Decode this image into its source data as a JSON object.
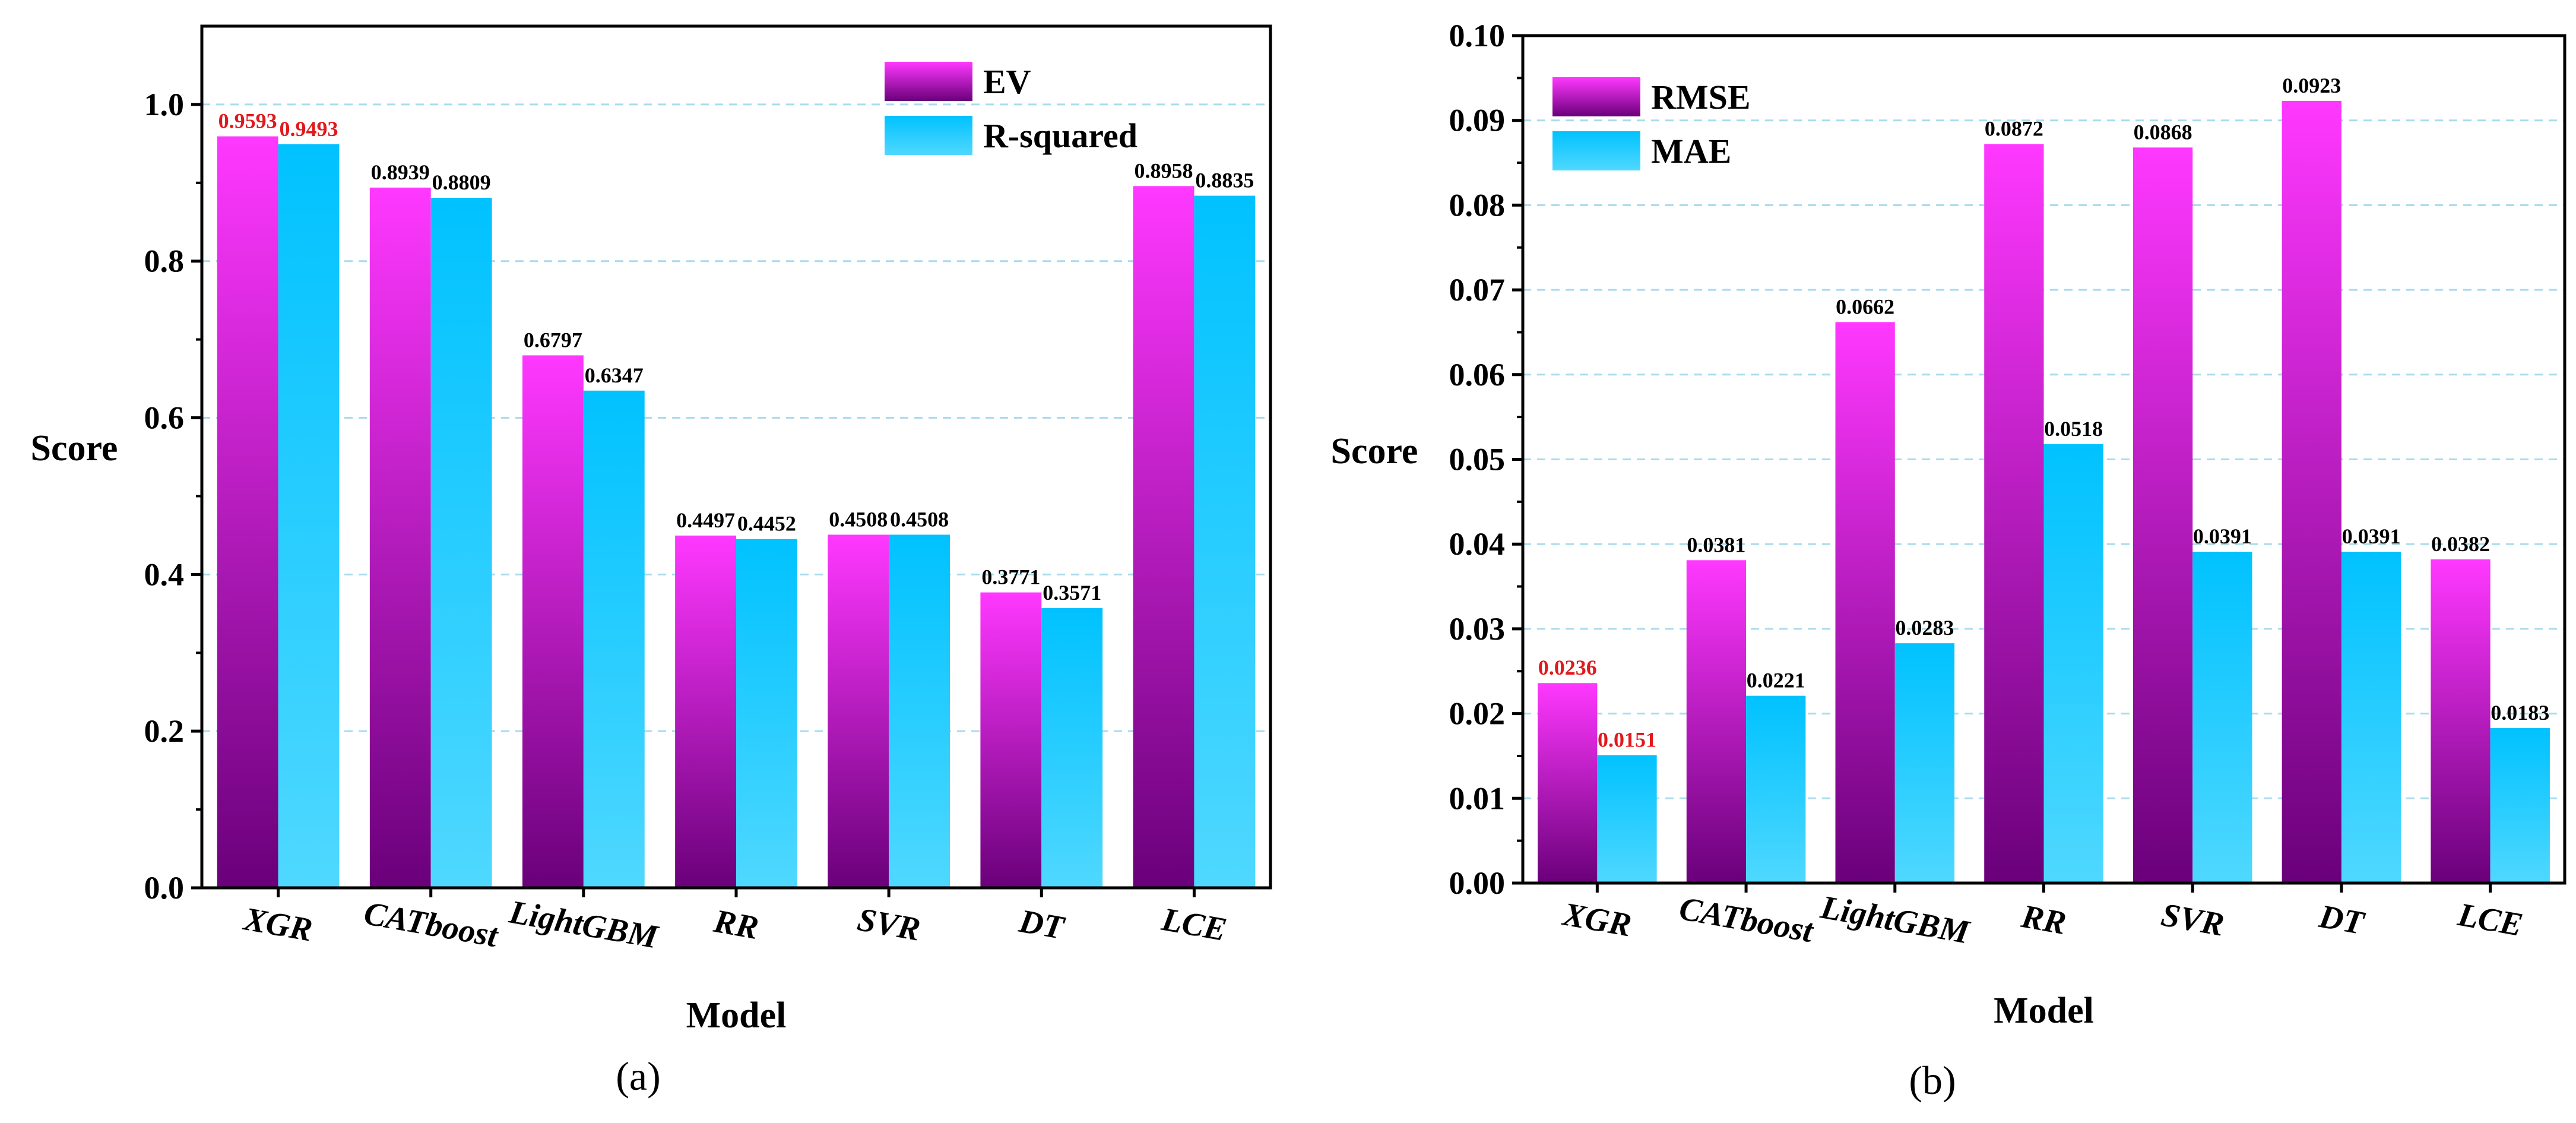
{
  "chart_data": [
    {
      "type": "bar",
      "panel_label": "(a)",
      "xlabel": "Model",
      "ylabel": "Score",
      "ylim": [
        0,
        1.1
      ],
      "yticks": [
        "0.0",
        "0.2",
        "0.4",
        "0.6",
        "0.8",
        "1.0"
      ],
      "categories": [
        "XGR",
        "CATboost",
        "LightGBM",
        "RR",
        "SVR",
        "DT",
        "LCE"
      ],
      "series": [
        {
          "name": "EV",
          "values": [
            0.9593,
            0.8939,
            0.6797,
            0.4497,
            0.4508,
            0.3771,
            0.8958
          ],
          "labels": [
            "0.9593",
            "0.8939",
            "0.6797",
            "0.4497",
            "0.4508",
            "0.3771",
            "0.8958"
          ]
        },
        {
          "name": "R-squared",
          "values": [
            0.9493,
            0.8809,
            0.6347,
            0.4452,
            0.4508,
            0.3571,
            0.8835
          ],
          "labels": [
            "0.9493",
            "0.8809",
            "0.6347",
            "0.4452",
            "0.4508",
            "0.3571",
            "0.8835"
          ]
        }
      ],
      "highlight_category": 0,
      "grid": "horizontal dashed",
      "legend_position": "top-right"
    },
    {
      "type": "bar",
      "panel_label": "(b)",
      "xlabel": "Model",
      "ylabel": "Score",
      "ylim": [
        0,
        0.1
      ],
      "yticks": [
        "0.00",
        "0.01",
        "0.02",
        "0.03",
        "0.04",
        "0.05",
        "0.06",
        "0.07",
        "0.08",
        "0.09",
        "0.10"
      ],
      "categories": [
        "XGR",
        "CATboost",
        "LightGBM",
        "RR",
        "SVR",
        "DT",
        "LCE"
      ],
      "series": [
        {
          "name": "RMSE",
          "values": [
            0.0236,
            0.0381,
            0.0662,
            0.0872,
            0.0868,
            0.0923,
            0.0382
          ],
          "labels": [
            "0.0236",
            "0.0381",
            "0.0662",
            "0.0872",
            "0.0868",
            "0.0923",
            "0.0382"
          ]
        },
        {
          "name": "MAE",
          "values": [
            0.0151,
            0.0221,
            0.0283,
            0.0518,
            0.0391,
            0.0391,
            0.0183
          ],
          "labels": [
            "0.0151",
            "0.0221",
            "0.0283",
            "0.0518",
            "0.0391",
            "0.0391",
            "0.0183"
          ]
        }
      ],
      "highlight_category": 0,
      "grid": "horizontal dashed",
      "legend_position": "top-left"
    }
  ],
  "colors": {
    "series1_top": "#ff38ff",
    "series1_bottom": "#6a007a",
    "series2_top": "#00c2ff",
    "series2_bottom": "#4fd8ff",
    "highlight_label": "#e0191d",
    "grid": "#a8dced"
  }
}
